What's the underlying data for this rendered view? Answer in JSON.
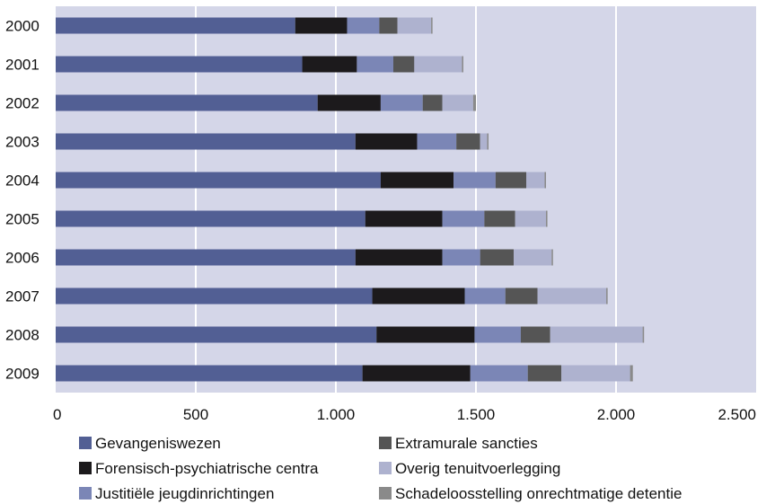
{
  "chart_data": {
    "type": "bar",
    "orientation": "horizontal",
    "stacked": true,
    "categories": [
      "2000",
      "2001",
      "2002",
      "2003",
      "2004",
      "2005",
      "2006",
      "2007",
      "2008",
      "2009"
    ],
    "series": [
      {
        "name": "Gevangeniswezen",
        "color": "#525f94",
        "values": [
          855,
          880,
          935,
          1070,
          1160,
          1105,
          1070,
          1130,
          1145,
          1095
        ]
      },
      {
        "name": "Forensisch-psychiatrische centra",
        "color": "#1c1a1c",
        "values": [
          185,
          195,
          225,
          220,
          260,
          275,
          310,
          330,
          350,
          385
        ]
      },
      {
        "name": "Justitiële jeugdinrichtingen",
        "color": "#7b86b6",
        "values": [
          115,
          130,
          150,
          140,
          150,
          150,
          135,
          145,
          165,
          205
        ]
      },
      {
        "name": "Extramurale sancties",
        "color": "#555555",
        "values": [
          65,
          75,
          70,
          85,
          110,
          110,
          120,
          115,
          105,
          120
        ]
      },
      {
        "name": "Overig tenuitvoerlegging",
        "color": "#aeb2cf",
        "values": [
          120,
          170,
          110,
          25,
          65,
          110,
          135,
          245,
          330,
          245
        ]
      },
      {
        "name": "Schadeloosstelling onrechtmatige detentie",
        "color": "#8a8a8a",
        "values": [
          5,
          5,
          10,
          5,
          5,
          5,
          5,
          5,
          5,
          10
        ]
      }
    ],
    "x_ticks": [
      "0",
      "500",
      "1.000",
      "1.500",
      "2.000",
      "2.500"
    ],
    "xlim": [
      0,
      2500
    ],
    "title": "",
    "xlabel": "",
    "ylabel": "",
    "grid": "vertical",
    "legend_position": "bottom",
    "plot_background": "#d4d6e8",
    "gridline_color": "#ffffff"
  }
}
